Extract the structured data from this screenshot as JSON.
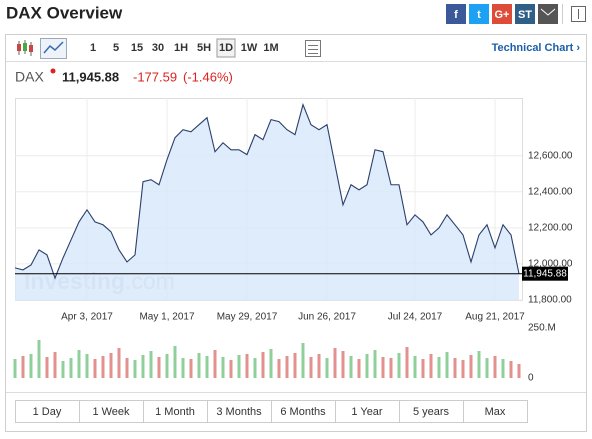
{
  "header": {
    "title": "DAX Overview",
    "share": [
      "f",
      "t",
      "G+",
      "ST"
    ]
  },
  "toolbar": {
    "intervals": [
      "1",
      "5",
      "15",
      "30",
      "1H",
      "5H",
      "1D",
      "1W",
      "1M"
    ],
    "selected": 6,
    "link": "Technical Chart ›"
  },
  "quote": {
    "symbol": "DAX",
    "last": "11,945.88",
    "change": "-177.59",
    "change_pct": "(-1.46%)"
  },
  "watermark": [
    "Investing",
    ".com"
  ],
  "ranges": [
    "1 Day",
    "1 Week",
    "1 Month",
    "3 Months",
    "6 Months",
    "1 Year",
    "5 years",
    "Max"
  ],
  "chart_data": [
    {
      "type": "area",
      "categories": [
        null,
        null,
        null,
        null,
        null,
        null,
        null,
        null,
        null,
        "Apr 3, 2017",
        null,
        null,
        null,
        null,
        null,
        null,
        null,
        null,
        null,
        "May 1, 2017",
        null,
        null,
        null,
        null,
        null,
        null,
        null,
        null,
        null,
        "May 29, 2017",
        null,
        null,
        null,
        null,
        null,
        null,
        null,
        null,
        null,
        "Jun 26, 2017",
        null,
        null,
        null,
        null,
        null,
        null,
        null,
        null,
        null,
        null,
        "Jul 24, 2017",
        null,
        null,
        null,
        null,
        null,
        null,
        null,
        null,
        null,
        "Aug 21, 2017",
        null,
        null,
        null
      ],
      "values": [
        11978,
        11967,
        11994,
        12078,
        12050,
        11922,
        12033,
        12133,
        12233,
        12300,
        12233,
        12217,
        12178,
        12078,
        12011,
        12050,
        12456,
        12467,
        12439,
        12578,
        12700,
        12744,
        12733,
        12772,
        12811,
        12622,
        12672,
        12633,
        12633,
        12606,
        12717,
        12689,
        12800,
        12789,
        12744,
        12717,
        12883,
        12772,
        12744,
        12772,
        12550,
        12328,
        12439,
        12411,
        12439,
        12633,
        12622,
        12439,
        12439,
        12217,
        12272,
        12233,
        12161,
        12200,
        12272,
        12217,
        12161,
        12011,
        12161,
        12217,
        12089,
        12217,
        12161,
        11945.88
      ],
      "color": "#2b3f6b",
      "fill": "#d8e9fb",
      "ylim": [
        11800,
        12920
      ],
      "yticks": [
        {
          "value": 12600,
          "label": "12,600.00"
        },
        {
          "value": 12400,
          "label": "12,400.00"
        },
        {
          "value": 12200,
          "label": "12,200.00"
        },
        {
          "value": 12000,
          "label": "12,000.00"
        },
        {
          "value": 11800,
          "label": "11,800.00"
        }
      ],
      "last": {
        "value": 11945.88,
        "label": "11,945.88"
      },
      "grid": true
    },
    {
      "type": "bar",
      "values": [
        95,
        110,
        120,
        190,
        105,
        130,
        85,
        100,
        140,
        120,
        95,
        110,
        125,
        150,
        100,
        90,
        115,
        135,
        105,
        120,
        160,
        100,
        95,
        125,
        110,
        140,
        105,
        90,
        115,
        120,
        100,
        130,
        145,
        95,
        110,
        125,
        175,
        105,
        120,
        100,
        150,
        135,
        110,
        95,
        120,
        140,
        105,
        100,
        125,
        155,
        110,
        95,
        120,
        105,
        130,
        100,
        90,
        115,
        135,
        100,
        110,
        95,
        85,
        70
      ],
      "up_color": "#8fcf9c",
      "down_color": "#e39090",
      "ylim": [
        0,
        250
      ],
      "yticks": [
        {
          "value": 250,
          "label": "250.M"
        },
        0
      ]
    }
  ]
}
